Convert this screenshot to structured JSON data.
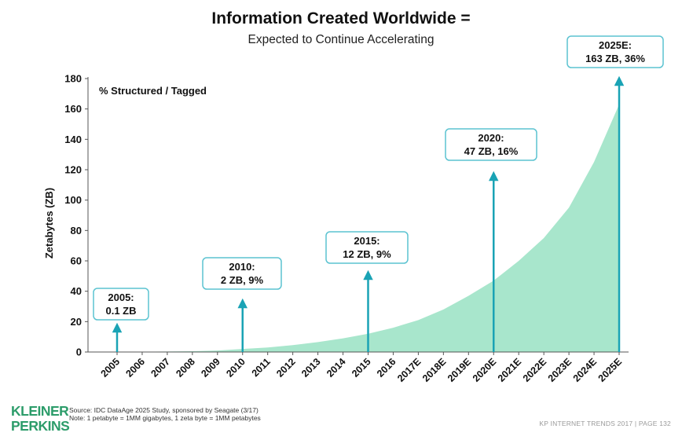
{
  "header": {
    "title": "Information Created Worldwide =",
    "subtitle": "Expected to Continue Accelerating"
  },
  "chart_data": {
    "type": "area",
    "title": "Information Created Worldwide =",
    "subtitle": "Expected to Continue Accelerating",
    "xlabel": "",
    "ylabel": "Zetabytes (ZB)",
    "inner_label": "% Structured / Tagged",
    "ylim": [
      0,
      180
    ],
    "yticks": [
      0,
      20,
      40,
      60,
      80,
      100,
      120,
      140,
      160,
      180
    ],
    "grid": false,
    "fill_color": "#a8e6cc",
    "arrow_color": "#1aa3b5",
    "categories": [
      "2005",
      "2006",
      "2007",
      "2008",
      "2009",
      "2010",
      "2011",
      "2012",
      "2013",
      "2014",
      "2015",
      "2016",
      "2017E",
      "2018E",
      "2019E",
      "2020E",
      "2021E",
      "2022E",
      "2023E",
      "2024E",
      "2025E"
    ],
    "series": [
      {
        "values": [
          0.1,
          0.2,
          0.3,
          0.5,
          1,
          2,
          3,
          4.5,
          6.5,
          9,
          12,
          16,
          21,
          28,
          37,
          47,
          60,
          75,
          95,
          125,
          163
        ]
      }
    ],
    "annotations": [
      {
        "index": 0,
        "line1": "2005:",
        "line2": "0.1 ZB"
      },
      {
        "index": 5,
        "line1": "2010:",
        "line2": "2 ZB, 9%"
      },
      {
        "index": 10,
        "line1": "2015:",
        "line2": "12 ZB, 9%"
      },
      {
        "index": 15,
        "line1": "2020:",
        "line2": "47 ZB, 16%"
      },
      {
        "index": 20,
        "line1": "2025E:",
        "line2": "163 ZB, 36%"
      }
    ]
  },
  "footer": {
    "logo_line1": "KLEINER",
    "logo_line2": "PERKINS",
    "source_line1": "Source: IDC DataAge 2025 Study, sponsored by Seagate (3/17)",
    "source_line2": "Note: 1 petabyte = 1MM gigabytes, 1 zeta byte = 1MM petabytes",
    "right_text": "KP INTERNET TRENDS 2017  |  PAGE 132"
  }
}
